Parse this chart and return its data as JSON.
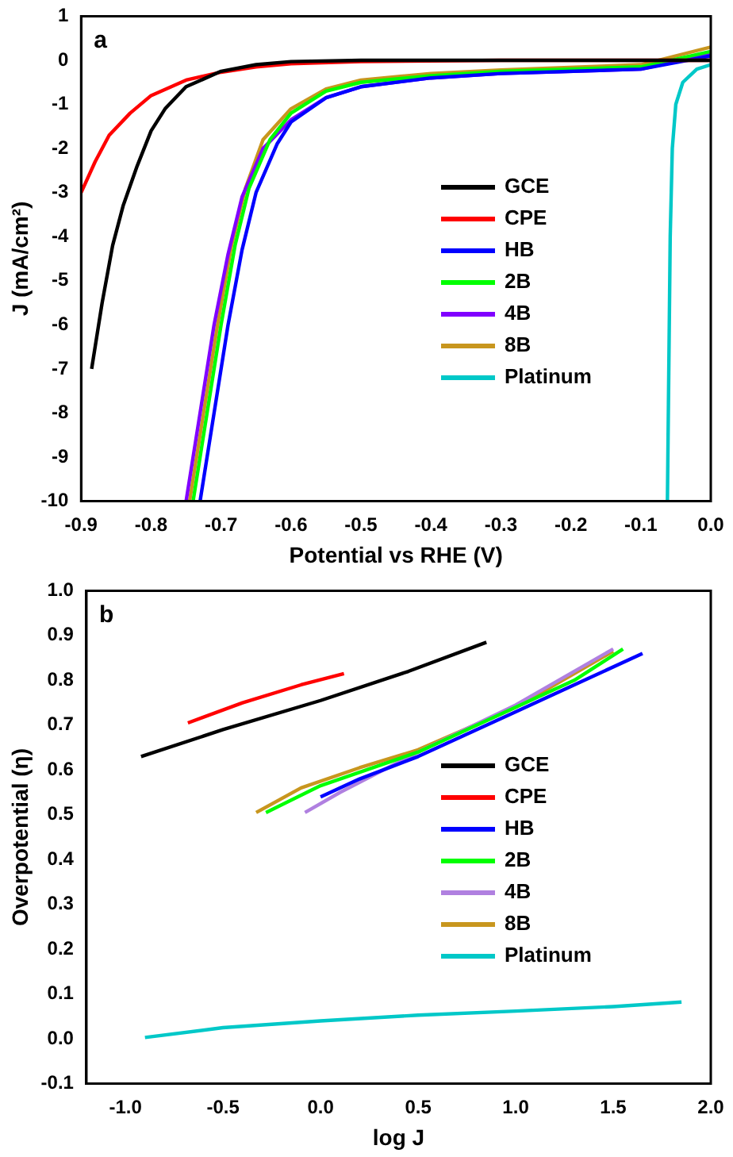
{
  "chart_data": [
    {
      "type": "line",
      "xlabel": "Potential vs RHE (V)",
      "ylabel": "J (mA/cm²)",
      "annotations": [
        "a"
      ],
      "xlim": [
        -0.9,
        0
      ],
      "xticks": [
        -0.9,
        -0.8,
        -0.7,
        -0.6,
        -0.5,
        -0.4,
        -0.3,
        -0.2,
        -0.1,
        {
          "value": 0,
          "label": "0.0"
        }
      ],
      "ylim": [
        -10,
        1
      ],
      "yticks": [
        -10,
        -9,
        -8,
        -7,
        -6,
        -5,
        -4,
        -3,
        -2,
        -1,
        0,
        1
      ],
      "legend": "center right",
      "grid": false,
      "marker": "none",
      "line_style": "solid",
      "series": [
        {
          "name": "GCE",
          "color": "#000000",
          "x": [
            -0.885,
            -0.87,
            -0.855,
            -0.84,
            -0.82,
            -0.8,
            -0.78,
            -0.75,
            -0.7,
            -0.65,
            -0.6,
            -0.5,
            0
          ],
          "values": [
            -7,
            -5.5,
            -4.2,
            -3.3,
            -2.4,
            -1.6,
            -1.1,
            -0.6,
            -0.25,
            -0.1,
            -0.03,
            0,
            0
          ]
        },
        {
          "name": "CPE",
          "color": "#ff0000",
          "x": [
            -0.9,
            -0.88,
            -0.86,
            -0.83,
            -0.8,
            -0.75,
            -0.7,
            -0.65,
            -0.6,
            -0.5,
            -0.3,
            0
          ],
          "values": [
            -3,
            -2.3,
            -1.7,
            -1.2,
            -0.8,
            -0.45,
            -0.27,
            -0.15,
            -0.08,
            -0.03,
            0,
            0
          ]
        },
        {
          "name": "HB",
          "color": "#0000ff",
          "x": [
            -0.73,
            -0.71,
            -0.69,
            -0.67,
            -0.65,
            -0.62,
            -0.6,
            -0.55,
            -0.5,
            -0.4,
            -0.3,
            -0.1,
            0
          ],
          "values": [
            -10,
            -8,
            -6,
            -4.3,
            -3,
            -1.9,
            -1.4,
            -0.85,
            -0.6,
            -0.4,
            -0.3,
            -0.2,
            0.1
          ]
        },
        {
          "name": "2B",
          "color": "#00ff00",
          "x": [
            -0.74,
            -0.72,
            -0.7,
            -0.68,
            -0.66,
            -0.63,
            -0.6,
            -0.55,
            -0.5,
            -0.4,
            -0.3,
            -0.1,
            0
          ],
          "values": [
            -10,
            -8,
            -6,
            -4.2,
            -2.9,
            -1.8,
            -1.2,
            -0.7,
            -0.5,
            -0.35,
            -0.25,
            -0.15,
            0.2
          ]
        },
        {
          "name": "4B",
          "color": "#8000ff",
          "x": [
            -0.75,
            -0.73,
            -0.71,
            -0.69,
            -0.67,
            -0.64,
            -0.6,
            -0.55,
            -0.5,
            -0.4,
            -0.3,
            -0.1,
            0
          ],
          "values": [
            -10,
            -8,
            -6,
            -4.4,
            -3.1,
            -2,
            -1.35,
            -0.85,
            -0.6,
            -0.4,
            -0.3,
            -0.2,
            0.15
          ]
        },
        {
          "name": "8B",
          "color": "#c8961e",
          "x": [
            -0.745,
            -0.725,
            -0.705,
            -0.685,
            -0.665,
            -0.64,
            -0.6,
            -0.55,
            -0.5,
            -0.4,
            -0.3,
            -0.1,
            0
          ],
          "values": [
            -10,
            -8,
            -6,
            -4.2,
            -2.9,
            -1.8,
            -1.1,
            -0.65,
            -0.45,
            -0.3,
            -0.22,
            -0.1,
            0.3
          ]
        },
        {
          "name": "Platinum",
          "color": "#00c8c8",
          "x": [
            -0.062,
            -0.06,
            -0.058,
            -0.055,
            -0.05,
            -0.04,
            -0.02,
            0
          ],
          "values": [
            -10,
            -7,
            -4,
            -2,
            -1,
            -0.5,
            -0.2,
            -0.1
          ]
        }
      ]
    },
    {
      "type": "line",
      "xlabel": "log J",
      "ylabel": "Overpotential (η)",
      "annotations": [
        "b"
      ],
      "xlim": [
        -1.2,
        2.0
      ],
      "xticks": [
        {
          "value": -1,
          "label": "-1.0"
        },
        -0.5,
        {
          "value": 0,
          "label": "0.0"
        },
        0.5,
        {
          "value": 1,
          "label": "1.0"
        },
        1.5,
        {
          "value": 2,
          "label": "2.0"
        }
      ],
      "ylim": [
        -0.1,
        1.0
      ],
      "yticks": [
        -0.1,
        {
          "value": 0,
          "label": "0.0"
        },
        0.1,
        0.2,
        0.3,
        0.4,
        0.5,
        0.6,
        0.7,
        0.8,
        0.9,
        {
          "value": 1,
          "label": "1.0"
        }
      ],
      "legend": "center right",
      "grid": false,
      "marker": "none",
      "line_style": "solid",
      "series": [
        {
          "name": "GCE",
          "color": "#000000",
          "x": [
            -0.92,
            -0.5,
            0,
            0.45,
            0.85
          ],
          "values": [
            0.63,
            0.69,
            0.755,
            0.82,
            0.885
          ]
        },
        {
          "name": "CPE",
          "color": "#ff0000",
          "x": [
            -0.68,
            -0.4,
            -0.1,
            0.12
          ],
          "values": [
            0.705,
            0.75,
            0.79,
            0.815
          ]
        },
        {
          "name": "HB",
          "color": "#0000ff",
          "x": [
            0,
            0.2,
            0.5,
            1.0,
            1.4,
            1.65
          ],
          "values": [
            0.54,
            0.58,
            0.63,
            0.73,
            0.81,
            0.86
          ]
        },
        {
          "name": "2B",
          "color": "#00ff00",
          "x": [
            -0.28,
            0,
            0.5,
            1.0,
            1.3,
            1.55
          ],
          "values": [
            0.505,
            0.565,
            0.64,
            0.74,
            0.8,
            0.87
          ]
        },
        {
          "name": "4B",
          "color": "#b080e0",
          "x": [
            -0.08,
            0.1,
            0.5,
            1.0,
            1.5
          ],
          "values": [
            0.505,
            0.55,
            0.64,
            0.745,
            0.87
          ]
        },
        {
          "name": "8B",
          "color": "#c8961e",
          "x": [
            -0.33,
            -0.1,
            0.2,
            0.5,
            1.0,
            1.5
          ],
          "values": [
            0.505,
            0.56,
            0.605,
            0.645,
            0.74,
            0.865
          ]
        },
        {
          "name": "Platinum",
          "color": "#00c8c8",
          "x": [
            -0.9,
            -0.5,
            0,
            0.5,
            1.0,
            1.5,
            1.85
          ],
          "values": [
            0.003,
            0.025,
            0.04,
            0.053,
            0.062,
            0.072,
            0.082
          ]
        }
      ]
    }
  ]
}
